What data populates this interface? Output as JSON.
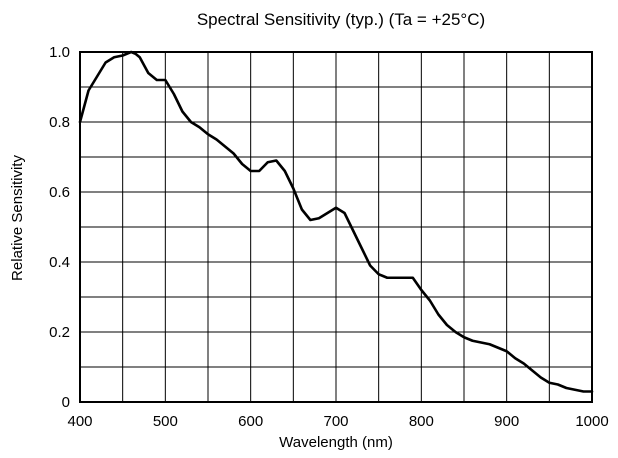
{
  "chart_data": {
    "type": "line",
    "title": "Spectral Sensitivity (typ.) (Ta = +25°C)",
    "xlabel": "Wavelength (nm)",
    "ylabel": "Relative Sensitivity",
    "xlim": [
      400,
      1000
    ],
    "ylim": [
      0,
      1.0
    ],
    "x_ticks": [
      400,
      500,
      600,
      700,
      800,
      900,
      1000
    ],
    "x_tick_labels": [
      "400",
      "500",
      "600",
      "700",
      "800",
      "900",
      "1000"
    ],
    "y_ticks": [
      0,
      0.2,
      0.4,
      0.6,
      0.8,
      1.0
    ],
    "y_tick_labels": [
      "0",
      "0.2",
      "0.4",
      "0.6",
      "0.8",
      "1.0"
    ],
    "x_grid_step": 50,
    "y_grid_step": 0.1,
    "grid": true,
    "legend": "none",
    "line_color": "#000000",
    "series": [
      {
        "x": [
          400,
          410,
          420,
          430,
          440,
          450,
          460,
          465,
          470,
          480,
          490,
          500,
          510,
          520,
          530,
          540,
          550,
          560,
          570,
          580,
          590,
          600,
          610,
          620,
          630,
          640,
          650,
          660,
          670,
          680,
          690,
          700,
          710,
          720,
          730,
          740,
          750,
          760,
          770,
          780,
          790,
          800,
          810,
          820,
          830,
          840,
          850,
          860,
          870,
          880,
          890,
          900,
          910,
          920,
          930,
          940,
          950,
          960,
          970,
          980,
          990,
          1000
        ],
        "y": [
          0.8,
          0.89,
          0.93,
          0.97,
          0.985,
          0.99,
          1.0,
          0.995,
          0.985,
          0.94,
          0.92,
          0.92,
          0.88,
          0.83,
          0.8,
          0.785,
          0.765,
          0.75,
          0.73,
          0.71,
          0.68,
          0.66,
          0.66,
          0.685,
          0.69,
          0.66,
          0.61,
          0.55,
          0.52,
          0.525,
          0.54,
          0.555,
          0.54,
          0.49,
          0.44,
          0.39,
          0.365,
          0.355,
          0.355,
          0.355,
          0.355,
          0.32,
          0.29,
          0.25,
          0.22,
          0.2,
          0.185,
          0.175,
          0.17,
          0.165,
          0.155,
          0.145,
          0.125,
          0.11,
          0.09,
          0.07,
          0.055,
          0.05,
          0.04,
          0.035,
          0.03,
          0.03
        ]
      }
    ]
  }
}
